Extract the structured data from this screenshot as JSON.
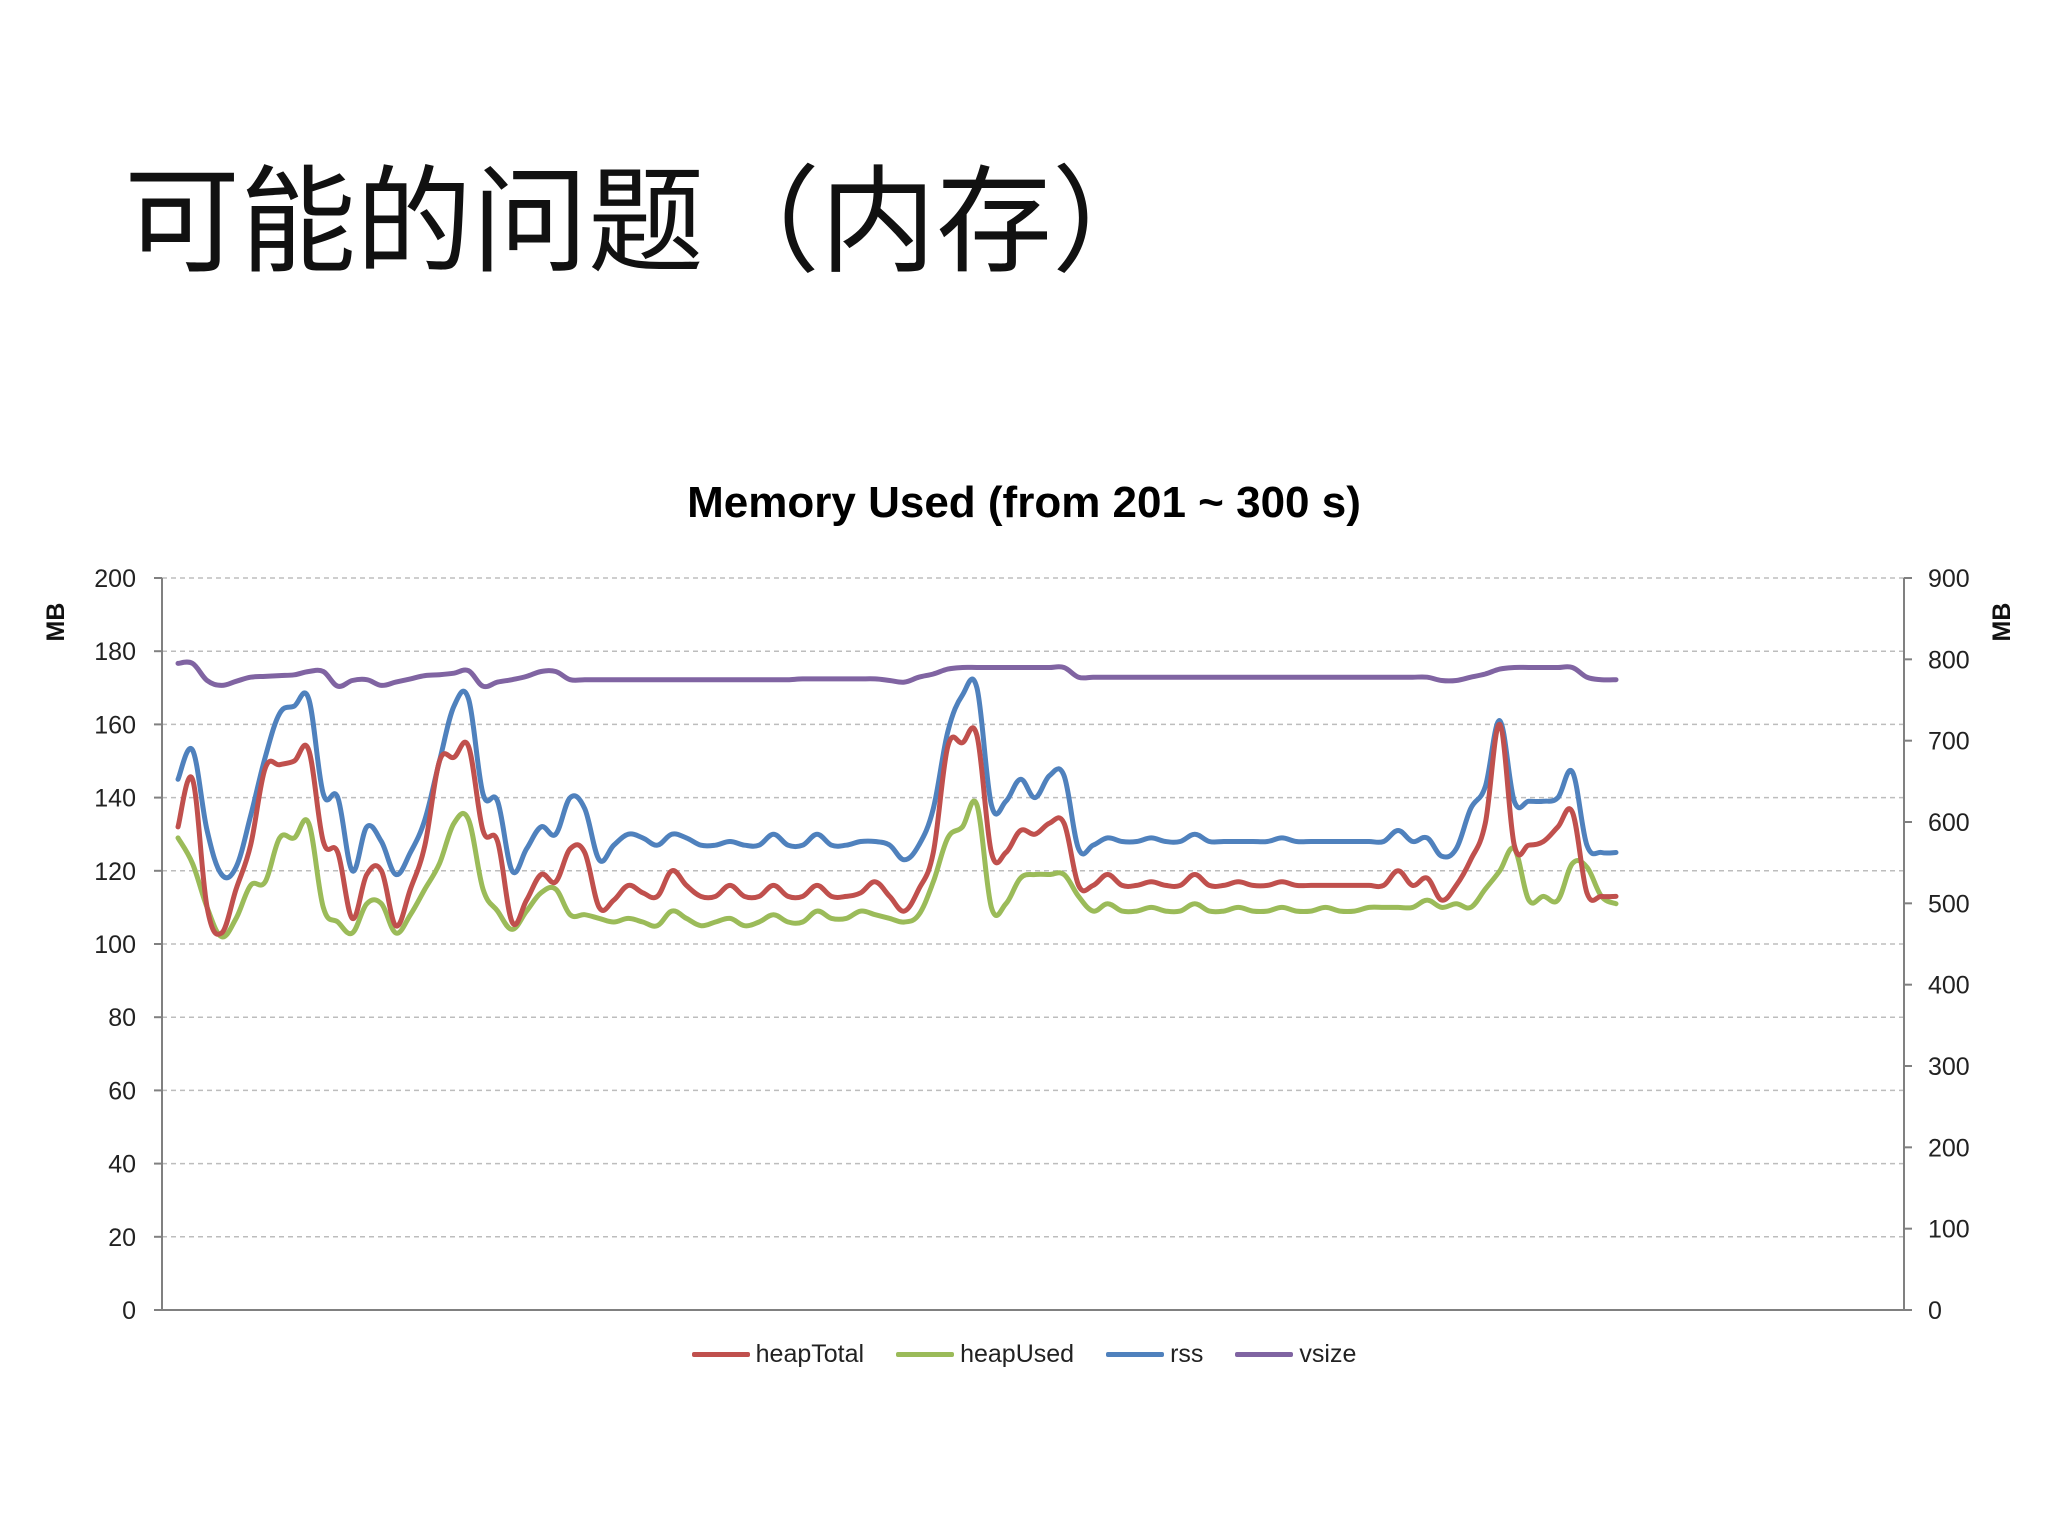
{
  "slide": {
    "title": "可能的问题（内存）"
  },
  "colors": {
    "heapTotal": "#c0504d",
    "heapUsed": "#9bbb59",
    "rss": "#4f81bd",
    "vsize": "#8064a2",
    "grid": "#bdbdbd",
    "axis": "#808080"
  },
  "chart_data": {
    "type": "line",
    "title": "Memory Used (from 201 ~ 300 s)",
    "ylabel": "MB",
    "y2label": "MB",
    "ylim": [
      0,
      200
    ],
    "y2lim": [
      0,
      900
    ],
    "yticks": [
      "0",
      "20",
      "40",
      "60",
      "80",
      "100",
      "120",
      "140",
      "160",
      "180",
      "200"
    ],
    "y2ticks": [
      "0",
      "100",
      "200",
      "300",
      "400",
      "500",
      "600",
      "700",
      "800",
      "900"
    ],
    "grid": true,
    "legend_position": "bottom",
    "x": [
      201,
      202,
      203,
      204,
      205,
      206,
      207,
      208,
      209,
      210,
      211,
      212,
      213,
      214,
      215,
      216,
      217,
      218,
      219,
      220,
      221,
      222,
      223,
      224,
      225,
      226,
      227,
      228,
      229,
      230,
      231,
      232,
      233,
      234,
      235,
      236,
      237,
      238,
      239,
      240,
      241,
      242,
      243,
      244,
      245,
      246,
      247,
      248,
      249,
      250,
      251,
      252,
      253,
      254,
      255,
      256,
      257,
      258,
      259,
      260,
      261,
      262,
      263,
      264,
      265,
      266,
      267,
      268,
      269,
      270,
      271,
      272,
      273,
      274,
      275,
      276,
      277,
      278,
      279,
      280,
      281,
      282,
      283,
      284,
      285,
      286,
      287,
      288,
      289,
      290,
      291,
      292,
      293,
      294,
      295,
      296,
      297,
      298,
      299,
      300
    ],
    "series": [
      {
        "name": "heapTotal",
        "axis": "left",
        "values": [
          132,
          145,
          110,
          103,
          115,
          127,
          148,
          149,
          150,
          153,
          128,
          125,
          107,
          119,
          120,
          105,
          115,
          127,
          150,
          151,
          154,
          131,
          128,
          106,
          112,
          119,
          117,
          126,
          125,
          110,
          112,
          116,
          114,
          113,
          120,
          116,
          113,
          113,
          116,
          113,
          113,
          116,
          113,
          113,
          116,
          113,
          113,
          114,
          117,
          113,
          109,
          115,
          125,
          154,
          155,
          157,
          125,
          125,
          131,
          130,
          133,
          133,
          116,
          116,
          119,
          116,
          116,
          117,
          116,
          116,
          119,
          116,
          116,
          117,
          116,
          116,
          117,
          116,
          116,
          116,
          116,
          116,
          116,
          116,
          120,
          116,
          118,
          112,
          116,
          123,
          133,
          160,
          127,
          127,
          128,
          132,
          136,
          114,
          113,
          113
        ]
      },
      {
        "name": "heapUsed",
        "axis": "left",
        "values": [
          129,
          122,
          110,
          102,
          107,
          116,
          117,
          129,
          129,
          133,
          110,
          106,
          103,
          111,
          111,
          103,
          108,
          115,
          122,
          133,
          134,
          115,
          109,
          104,
          109,
          114,
          115,
          108,
          108,
          107,
          106,
          107,
          106,
          105,
          109,
          107,
          105,
          106,
          107,
          105,
          106,
          108,
          106,
          106,
          109,
          107,
          107,
          109,
          108,
          107,
          106,
          108,
          117,
          129,
          132,
          138,
          110,
          111,
          118,
          119,
          119,
          119,
          113,
          109,
          111,
          109,
          109,
          110,
          109,
          109,
          111,
          109,
          109,
          110,
          109,
          109,
          110,
          109,
          109,
          110,
          109,
          109,
          110,
          110,
          110,
          110,
          112,
          110,
          111,
          110,
          115,
          120,
          126,
          112,
          113,
          112,
          122,
          121,
          113,
          111
        ]
      },
      {
        "name": "rss",
        "axis": "left",
        "values": [
          145,
          153,
          131,
          119,
          121,
          135,
          151,
          163,
          165,
          167,
          141,
          140,
          120,
          132,
          128,
          119,
          125,
          134,
          150,
          165,
          167,
          141,
          139,
          120,
          126,
          132,
          130,
          140,
          137,
          123,
          127,
          130,
          129,
          127,
          130,
          129,
          127,
          127,
          128,
          127,
          127,
          130,
          127,
          127,
          130,
          127,
          127,
          128,
          128,
          127,
          123,
          127,
          137,
          158,
          168,
          170,
          138,
          139,
          145,
          140,
          146,
          146,
          126,
          127,
          129,
          128,
          128,
          129,
          128,
          128,
          130,
          128,
          128,
          128,
          128,
          128,
          129,
          128,
          128,
          128,
          128,
          128,
          128,
          128,
          131,
          128,
          129,
          124,
          126,
          137,
          143,
          161,
          139,
          139,
          139,
          140,
          147,
          127,
          125,
          125
        ]
      },
      {
        "name": "vsize",
        "axis": "right",
        "values": [
          795,
          795,
          774,
          768,
          773,
          778,
          779,
          780,
          781,
          785,
          785,
          767,
          774,
          775,
          768,
          772,
          776,
          780,
          781,
          783,
          786,
          767,
          772,
          775,
          779,
          785,
          785,
          775,
          775,
          775,
          775,
          775,
          775,
          775,
          775,
          775,
          775,
          775,
          775,
          775,
          775,
          775,
          775,
          776,
          776,
          776,
          776,
          776,
          776,
          774,
          772,
          778,
          782,
          788,
          790,
          790,
          790,
          790,
          790,
          790,
          790,
          790,
          778,
          778,
          778,
          778,
          778,
          778,
          778,
          778,
          778,
          778,
          778,
          778,
          778,
          778,
          778,
          778,
          778,
          778,
          778,
          778,
          778,
          778,
          778,
          778,
          778,
          774,
          774,
          778,
          782,
          788,
          790,
          790,
          790,
          790,
          790,
          778,
          775,
          775
        ]
      }
    ]
  }
}
